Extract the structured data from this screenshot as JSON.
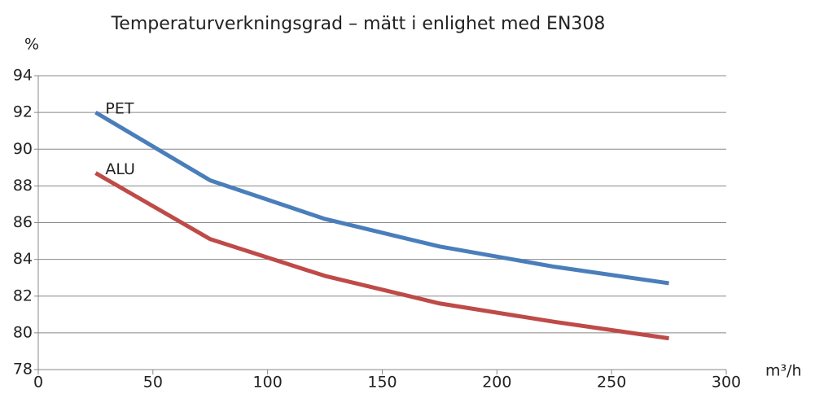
{
  "chart_data": {
    "type": "line",
    "title": "Temperaturverkningsgrad – mätt i enlighet med EN308",
    "y_label": "%",
    "x_label": "m³/h",
    "x": [
      25,
      75,
      125,
      175,
      225,
      275
    ],
    "series": [
      {
        "name": "PET",
        "color": "#4a7ebb",
        "values": [
          92.0,
          88.3,
          86.2,
          84.7,
          83.6,
          82.7
        ]
      },
      {
        "name": "ALU",
        "color": "#be4b48",
        "values": [
          88.7,
          85.1,
          83.1,
          81.6,
          80.6,
          79.7
        ]
      }
    ],
    "xlim": [
      0,
      300
    ],
    "xticks": [
      0,
      50,
      100,
      150,
      200,
      250,
      300
    ],
    "ylim": [
      78,
      94
    ],
    "yticks": [
      78,
      80,
      82,
      84,
      86,
      88,
      90,
      92,
      94
    ],
    "grid": true
  }
}
